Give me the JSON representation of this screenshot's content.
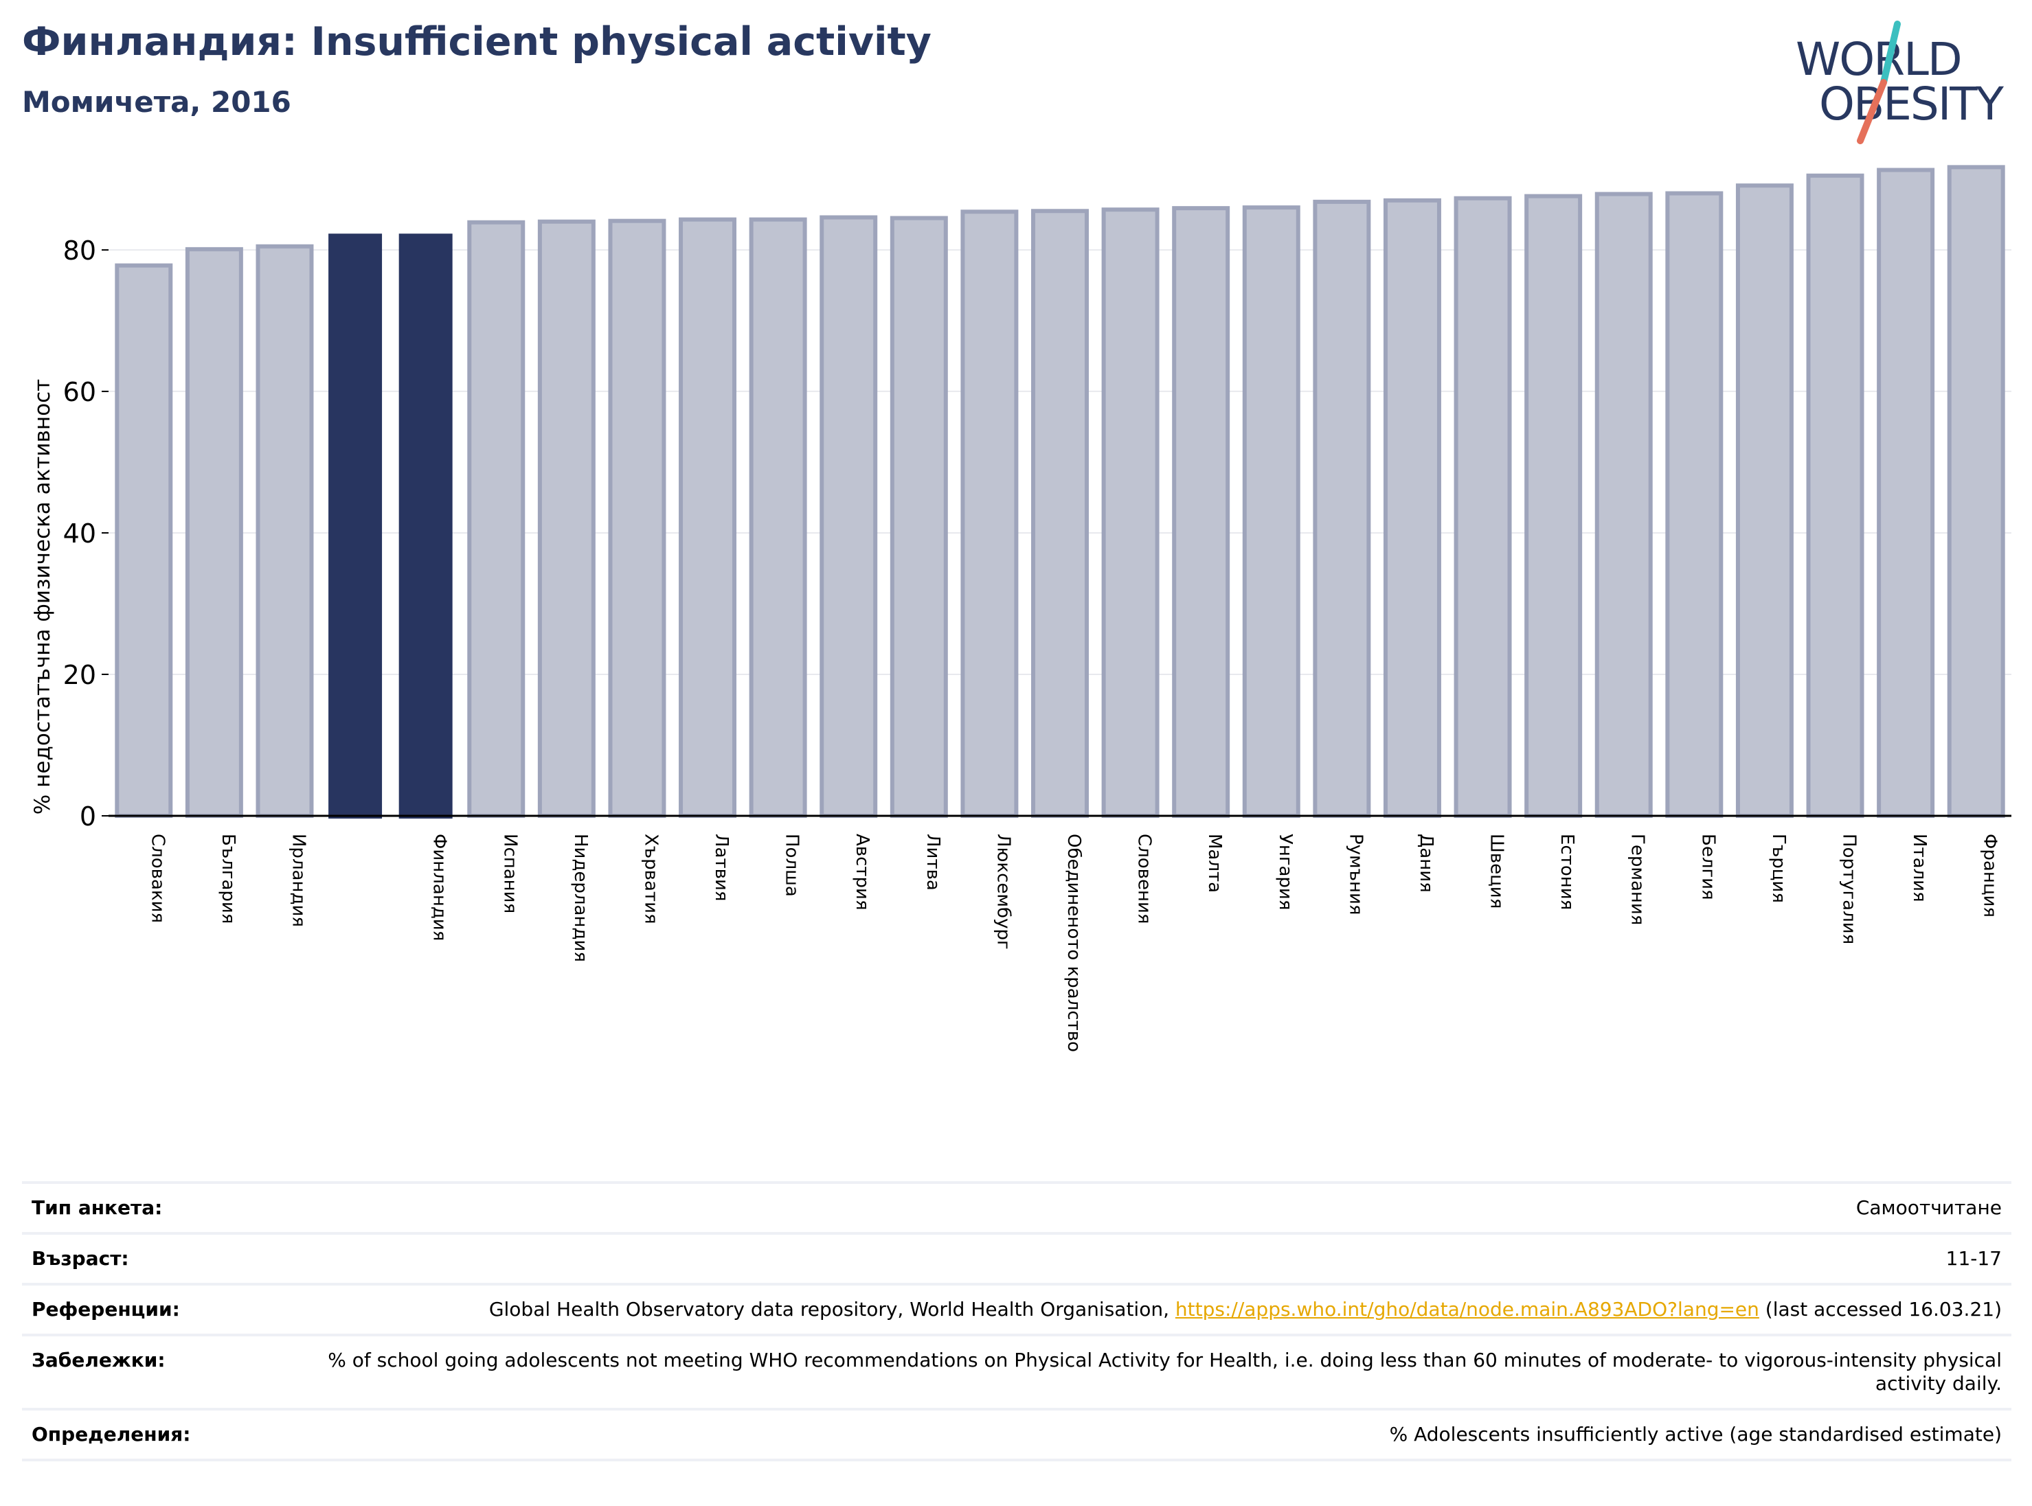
{
  "header": {
    "title": "Финландия: Insufficient physical activity",
    "subtitle": "Момичета, 2016"
  },
  "logo": {
    "line1": "WORLD",
    "line2": "OBESITY",
    "accent_teal": "#3bbfbf",
    "accent_coral": "#e5705a"
  },
  "colors": {
    "highlight_bar": "#283560",
    "other_bar": "#bfc3d1",
    "other_bar_edge": "#9ea4bb",
    "text_dark": "#283860",
    "link": "#e6a700"
  },
  "chart_data": {
    "type": "bar",
    "ylabel": "% недостатъчна физическа активност",
    "ylim": [
      0,
      93
    ],
    "yticks": [
      0,
      20,
      40,
      60,
      80
    ],
    "grid": true,
    "categories": [
      "Словакия",
      "България",
      "Ирландия",
      "",
      "Финландия",
      "Испания",
      "Нидерландия",
      "Хърватия",
      "Латвия",
      "Полша",
      "Австрия",
      "Литва",
      "Люксембург",
      "Обединеното кралство",
      "Словения",
      "Малта",
      "Унгария",
      "Румъния",
      "Дания",
      "Швеция",
      "Естония",
      "Германия",
      "Белгия",
      "Гърция",
      "Португалия",
      "Италия",
      "Франция"
    ],
    "values": [
      77.8,
      80.1,
      80.5,
      82.3,
      82.3,
      83.9,
      84.0,
      84.1,
      84.3,
      84.3,
      84.6,
      84.5,
      85.4,
      85.5,
      85.7,
      85.9,
      86.0,
      86.8,
      87.0,
      87.3,
      87.6,
      87.9,
      88.0,
      89.1,
      90.5,
      91.3,
      91.7
    ],
    "highlight": [
      3,
      4
    ]
  },
  "info": [
    {
      "label": "Тип анкета:",
      "value": "Самоотчитане"
    },
    {
      "label": "Възраст:",
      "value": "11-17"
    },
    {
      "label": "Референции:",
      "value_pre": "Global Health Observatory data repository, World Health Organisation, ",
      "link": "https://apps.who.int/gho/data/node.main.A893ADO?lang=en",
      "value_post": " (last accessed 16.03.21)"
    },
    {
      "label": "Забележки:",
      "value": "% of school going adolescents not meeting WHO recommendations on Physical Activity for Health, i.e. doing less than 60 minutes of moderate- to vigorous-intensity physical activity daily."
    },
    {
      "label": "Определения:",
      "value": "% Adolescents insufficiently active (age standardised estimate)"
    }
  ]
}
